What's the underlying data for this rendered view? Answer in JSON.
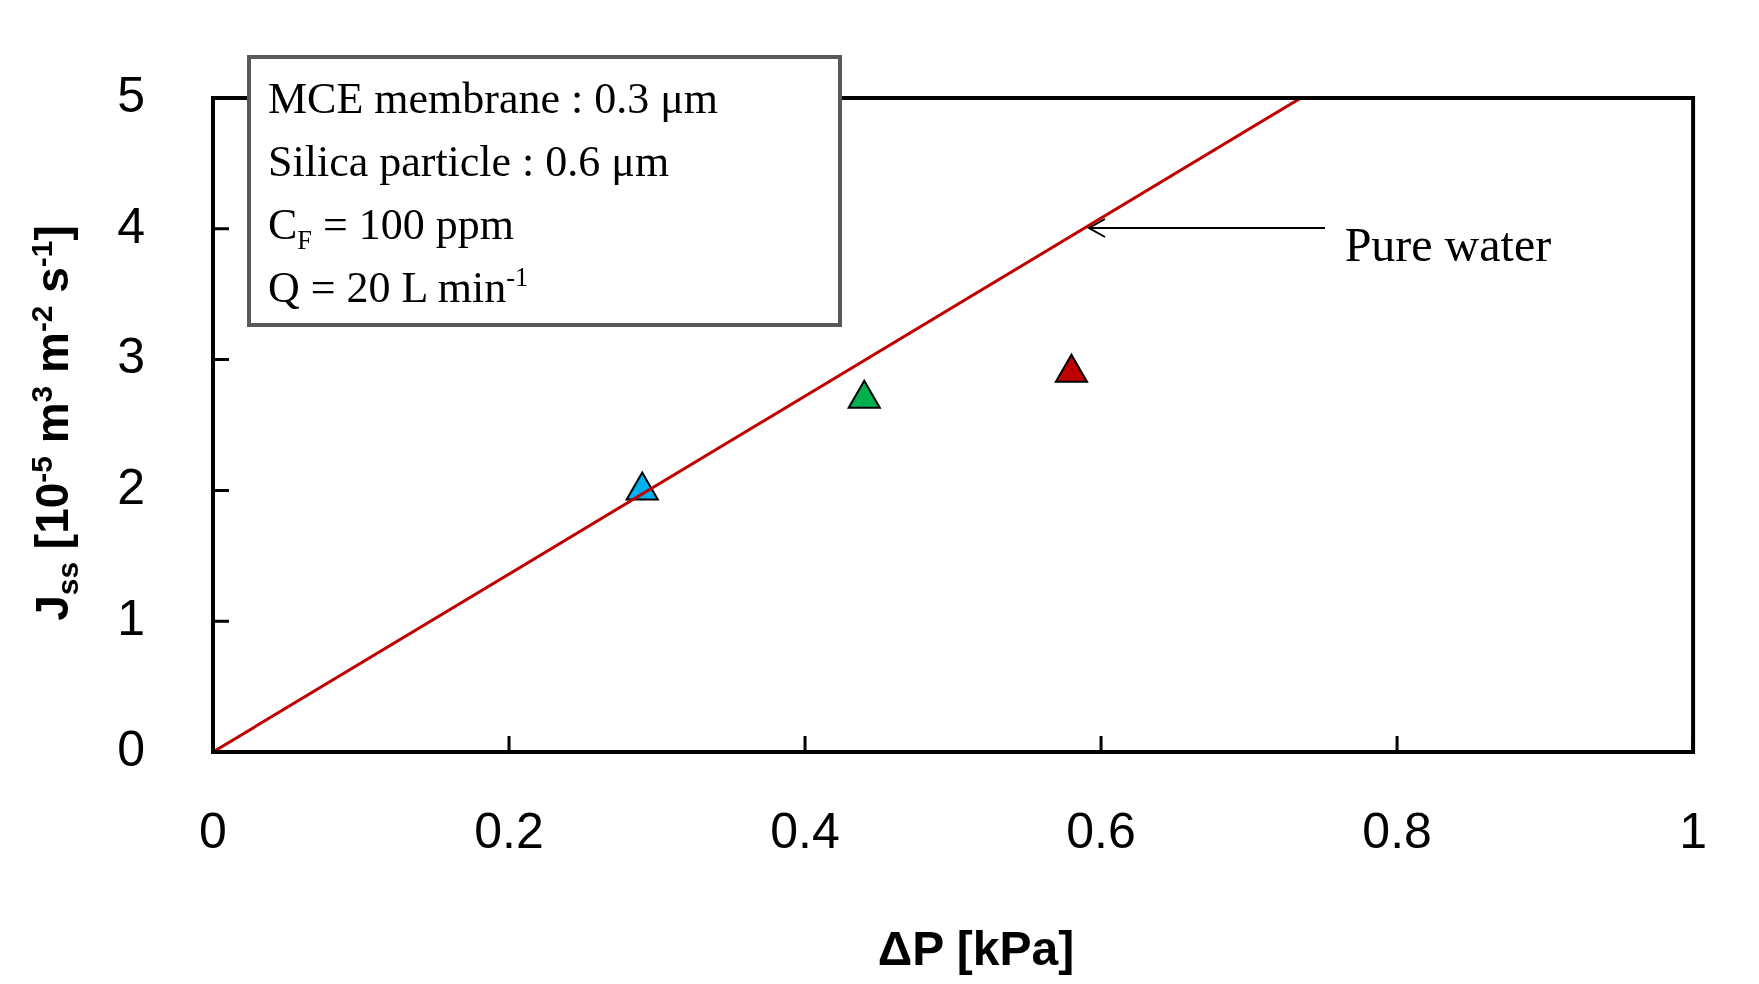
{
  "chart_data": {
    "type": "scatter",
    "xlabel": "ΔP [kPa]",
    "ylabel": "J$_{ss}$ [10$^{-5}$ m$^{3}$ m$^{-2}$ s$^{-1}$]",
    "xlim": [
      0,
      1
    ],
    "xticks": [
      0,
      0.2,
      0.4,
      0.6,
      0.8,
      1
    ],
    "ylim": [
      0,
      5
    ],
    "yticks": [
      0,
      1,
      2,
      3,
      4,
      5
    ],
    "grid": false,
    "legend": false,
    "marker": "triangle",
    "series": [
      {
        "type": "line",
        "name": "Pure water",
        "x": [
          0,
          0.735
        ],
        "values": [
          0,
          5
        ],
        "color": "#c00000",
        "marker": "none"
      },
      {
        "type": "scatter",
        "x": [
          0.29,
          0.44,
          0.58
        ],
        "values": [
          2.0,
          2.7,
          2.9
        ],
        "colors": [
          "#00b0f0",
          "#00b050",
          "#c00000"
        ]
      }
    ],
    "annotations": [
      "MCE membrane : 0.3 μm",
      "Silica particle : 0.6 μm",
      "C$_{F}$ = 100 ppm",
      "Q = 20 L min$^{-1}$"
    ]
  }
}
